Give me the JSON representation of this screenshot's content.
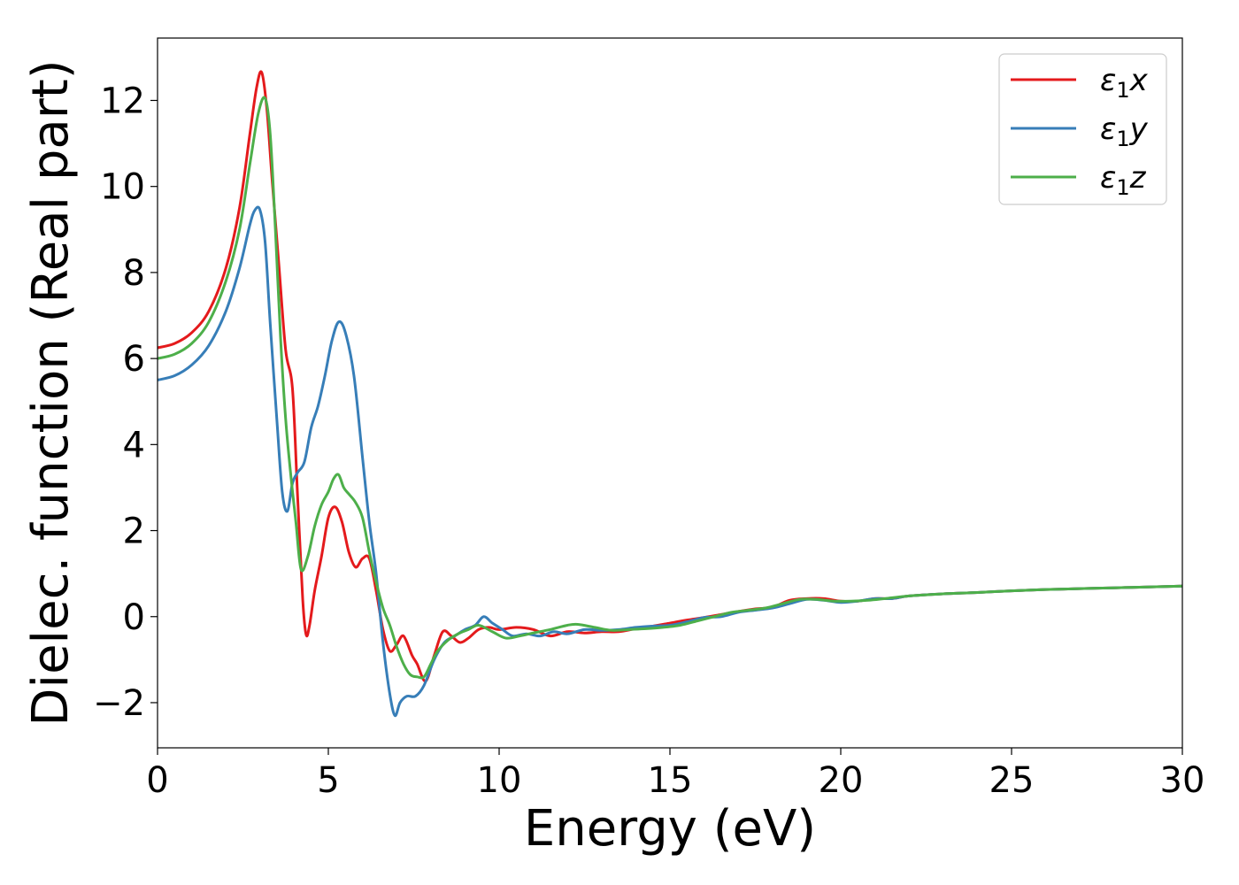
{
  "chart_data": {
    "type": "line",
    "xlabel": "Energy (eV)",
    "ylabel": "Dielec. function (Real part)",
    "xlim": [
      0,
      30
    ],
    "ylim": [
      -3.05,
      13.45
    ],
    "xticks": [
      0,
      5,
      10,
      15,
      20,
      25,
      30
    ],
    "xtick_labels": [
      "0",
      "5",
      "10",
      "15",
      "20",
      "25",
      "30"
    ],
    "yticks": [
      -2,
      0,
      2,
      4,
      6,
      8,
      10,
      12
    ],
    "ytick_labels": [
      "−2",
      "0",
      "2",
      "4",
      "6",
      "8",
      "10",
      "12"
    ],
    "grid": false,
    "legend_position": "top-right",
    "series": [
      {
        "name": "ε₁x",
        "legend_base": "ε",
        "legend_sub": "1",
        "legend_tail": "x",
        "color": "#e41a1c",
        "x": [
          0,
          0.5,
          1.0,
          1.5,
          2.0,
          2.4,
          2.7,
          2.9,
          3.05,
          3.2,
          3.35,
          3.55,
          3.75,
          3.95,
          4.1,
          4.25,
          4.35,
          4.45,
          4.6,
          4.8,
          5.0,
          5.2,
          5.4,
          5.6,
          5.8,
          6.0,
          6.2,
          6.4,
          6.6,
          6.8,
          7.0,
          7.2,
          7.45,
          7.6,
          7.85,
          8.1,
          8.35,
          8.6,
          8.85,
          9.1,
          9.4,
          9.7,
          10.0,
          10.5,
          11.0,
          11.5,
          12.0,
          12.5,
          13.0,
          13.5,
          14.0,
          14.5,
          15.0,
          15.5,
          16.0,
          16.5,
          17.0,
          17.5,
          18.0,
          18.5,
          19.0,
          19.5,
          20.0,
          20.5,
          21.0,
          21.5,
          22.0,
          23.0,
          24.0,
          25.0,
          26.0,
          27.0,
          28.0,
          29.0,
          30.0
        ],
        "y": [
          6.25,
          6.35,
          6.6,
          7.1,
          8.1,
          9.5,
          11.2,
          12.3,
          12.65,
          11.8,
          10.2,
          8.2,
          6.2,
          5.3,
          2.8,
          0.4,
          -0.42,
          -0.2,
          0.6,
          1.4,
          2.3,
          2.55,
          2.2,
          1.5,
          1.15,
          1.35,
          1.35,
          0.6,
          -0.3,
          -0.8,
          -0.65,
          -0.45,
          -0.9,
          -1.1,
          -1.5,
          -0.9,
          -0.35,
          -0.45,
          -0.6,
          -0.5,
          -0.3,
          -0.25,
          -0.3,
          -0.25,
          -0.3,
          -0.45,
          -0.35,
          -0.38,
          -0.35,
          -0.35,
          -0.28,
          -0.22,
          -0.15,
          -0.08,
          -0.02,
          0.05,
          0.12,
          0.18,
          0.22,
          0.38,
          0.42,
          0.42,
          0.36,
          0.36,
          0.42,
          0.42,
          0.48,
          0.53,
          0.56,
          0.6,
          0.63,
          0.65,
          0.67,
          0.69,
          0.71
        ]
      },
      {
        "name": "ε₁y",
        "legend_base": "ε",
        "legend_sub": "1",
        "legend_tail": "y",
        "color": "#377eb8",
        "x": [
          0,
          0.5,
          1.0,
          1.5,
          2.0,
          2.4,
          2.7,
          2.85,
          3.0,
          3.15,
          3.3,
          3.5,
          3.65,
          3.8,
          3.95,
          4.1,
          4.3,
          4.5,
          4.7,
          4.9,
          5.1,
          5.3,
          5.5,
          5.75,
          6.0,
          6.2,
          6.4,
          6.6,
          6.8,
          6.95,
          7.1,
          7.3,
          7.55,
          7.8,
          8.1,
          8.4,
          8.7,
          9.0,
          9.3,
          9.55,
          9.8,
          10.1,
          10.4,
          10.8,
          11.2,
          11.6,
          12.0,
          12.5,
          13.0,
          13.5,
          14.0,
          14.5,
          15.0,
          15.5,
          16.0,
          16.5,
          17.0,
          17.5,
          18.0,
          18.5,
          19.0,
          19.5,
          20.0,
          20.5,
          21.0,
          21.5,
          22.0,
          23.0,
          24.0,
          25.0,
          26.0,
          27.0,
          28.0,
          29.0,
          30.0
        ],
        "y": [
          5.5,
          5.6,
          5.85,
          6.3,
          7.1,
          8.1,
          9.1,
          9.45,
          9.45,
          8.7,
          6.8,
          4.5,
          2.9,
          2.45,
          3.1,
          3.35,
          3.6,
          4.4,
          4.9,
          5.6,
          6.4,
          6.85,
          6.6,
          5.6,
          3.7,
          2.2,
          1.0,
          -0.6,
          -1.8,
          -2.3,
          -2.0,
          -1.85,
          -1.85,
          -1.6,
          -1.0,
          -0.6,
          -0.45,
          -0.3,
          -0.2,
          0.0,
          -0.15,
          -0.3,
          -0.45,
          -0.4,
          -0.45,
          -0.35,
          -0.4,
          -0.3,
          -0.32,
          -0.3,
          -0.25,
          -0.22,
          -0.2,
          -0.12,
          -0.02,
          0.0,
          0.1,
          0.15,
          0.2,
          0.3,
          0.4,
          0.38,
          0.33,
          0.36,
          0.42,
          0.42,
          0.48,
          0.53,
          0.56,
          0.6,
          0.63,
          0.65,
          0.67,
          0.69,
          0.71
        ]
      },
      {
        "name": "ε₁z",
        "legend_base": "ε",
        "legend_sub": "1",
        "legend_tail": "z",
        "color": "#4daf4a",
        "x": [
          0,
          0.5,
          1.0,
          1.5,
          2.0,
          2.4,
          2.7,
          2.95,
          3.15,
          3.3,
          3.45,
          3.6,
          3.75,
          3.9,
          4.05,
          4.2,
          4.4,
          4.6,
          4.8,
          5.0,
          5.15,
          5.3,
          5.45,
          5.6,
          5.8,
          6.0,
          6.2,
          6.4,
          6.6,
          6.8,
          7.0,
          7.2,
          7.4,
          7.6,
          7.8,
          8.0,
          8.2,
          8.5,
          8.8,
          9.1,
          9.4,
          9.8,
          10.2,
          10.6,
          11.0,
          11.5,
          12.0,
          12.3,
          12.8,
          13.3,
          13.8,
          14.3,
          14.8,
          15.3,
          15.8,
          16.3,
          16.8,
          17.3,
          17.8,
          18.3,
          18.8,
          19.3,
          19.8,
          20.3,
          20.8,
          21.3,
          22.0,
          23.0,
          24.0,
          25.0,
          26.0,
          27.0,
          28.0,
          29.0,
          30.0
        ],
        "y": [
          6.0,
          6.1,
          6.35,
          6.85,
          7.8,
          9.0,
          10.5,
          11.7,
          12.05,
          11.2,
          9.0,
          6.5,
          4.6,
          3.3,
          2.2,
          1.1,
          1.4,
          2.1,
          2.6,
          2.9,
          3.2,
          3.3,
          3.0,
          2.85,
          2.65,
          2.3,
          1.5,
          0.8,
          0.2,
          -0.2,
          -0.7,
          -1.1,
          -1.35,
          -1.4,
          -1.4,
          -1.1,
          -0.8,
          -0.55,
          -0.4,
          -0.3,
          -0.2,
          -0.35,
          -0.5,
          -0.45,
          -0.38,
          -0.3,
          -0.2,
          -0.18,
          -0.25,
          -0.32,
          -0.3,
          -0.28,
          -0.25,
          -0.2,
          -0.1,
          0.0,
          0.1,
          0.15,
          0.2,
          0.3,
          0.4,
          0.4,
          0.36,
          0.36,
          0.38,
          0.42,
          0.48,
          0.53,
          0.56,
          0.6,
          0.63,
          0.65,
          0.67,
          0.69,
          0.71
        ]
      }
    ]
  }
}
